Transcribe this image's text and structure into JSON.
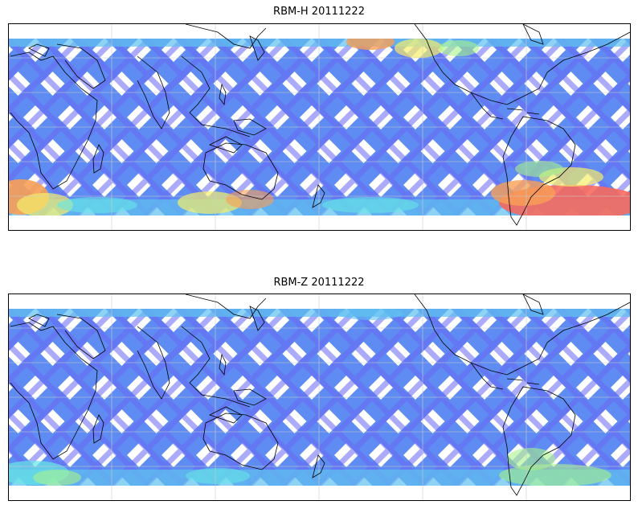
{
  "panels": [
    {
      "title": "RBM-H 20111222",
      "variant": "H"
    },
    {
      "title": "RBM-Z 20111222",
      "variant": "Z"
    }
  ],
  "colors": {
    "swath_dark": "#6a68f5",
    "swath_mid": "#5f8cf2",
    "swath_light": "#5fc1f0",
    "cyan": "#66e6e6",
    "green": "#a6f48a",
    "yellow": "#f4ee6a",
    "orange": "#f8a055",
    "red": "#f76a5e",
    "coastline": "#000000",
    "grid": "#cccccc"
  }
}
